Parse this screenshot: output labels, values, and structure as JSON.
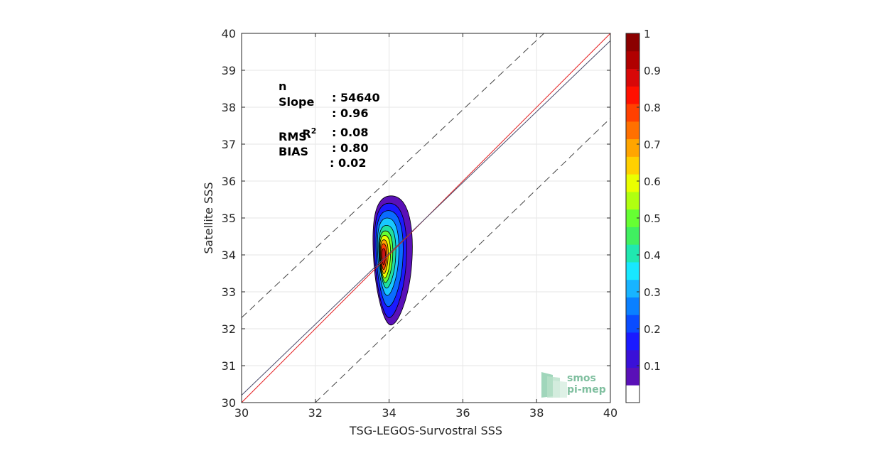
{
  "chart_data": {
    "type": "contour",
    "xlabel": "TSG-LEGOS-Survostral SSS",
    "ylabel": "Satellite SSS",
    "xlim": [
      30,
      40
    ],
    "ylim": [
      30,
      40
    ],
    "xticks": [
      "30",
      "32",
      "34",
      "36",
      "38",
      "40"
    ],
    "yticks": [
      "30",
      "31",
      "32",
      "33",
      "34",
      "35",
      "36",
      "37",
      "38",
      "39",
      "40"
    ],
    "grid": true,
    "lines": [
      {
        "name": "identity",
        "color": "#e41a1c",
        "style": "solid",
        "x": [
          30,
          40
        ],
        "y": [
          30,
          40
        ]
      },
      {
        "name": "fit",
        "color": "#4a4a6a",
        "style": "solid",
        "x": [
          30,
          40
        ],
        "y": [
          30.2,
          39.8
        ]
      },
      {
        "name": "upper-bound",
        "color": "#444444",
        "style": "dashed",
        "x": [
          30,
          38.2
        ],
        "y": [
          32.3,
          40
        ]
      },
      {
        "name": "lower-bound",
        "color": "#444444",
        "style": "dashed",
        "x": [
          32,
          40
        ],
        "y": [
          30,
          37.7
        ]
      }
    ],
    "contour_levels": [
      {
        "level": 0.05,
        "color": "#5a10b8",
        "center": [
          34.05,
          33.85
        ],
        "rx": 0.55,
        "ry": 1.75
      },
      {
        "level": 0.1,
        "color": "#1a1aff",
        "center": [
          34.0,
          33.85
        ],
        "rx": 0.45,
        "ry": 1.55
      },
      {
        "level": 0.2,
        "color": "#0a6cff",
        "center": [
          33.98,
          33.9
        ],
        "rx": 0.38,
        "ry": 1.3
      },
      {
        "level": 0.3,
        "color": "#18c8ff",
        "center": [
          33.95,
          33.95
        ],
        "rx": 0.3,
        "ry": 1.05
      },
      {
        "level": 0.4,
        "color": "#20e0a0",
        "center": [
          33.93,
          33.95
        ],
        "rx": 0.24,
        "ry": 0.85
      },
      {
        "level": 0.5,
        "color": "#66ff33",
        "center": [
          33.9,
          33.95
        ],
        "rx": 0.19,
        "ry": 0.7
      },
      {
        "level": 0.6,
        "color": "#eaff00",
        "center": [
          33.88,
          33.95
        ],
        "rx": 0.15,
        "ry": 0.58
      },
      {
        "level": 0.7,
        "color": "#ffa500",
        "center": [
          33.86,
          33.95
        ],
        "rx": 0.11,
        "ry": 0.46
      },
      {
        "level": 0.8,
        "color": "#ff4000",
        "center": [
          33.85,
          33.95
        ],
        "rx": 0.08,
        "ry": 0.35
      },
      {
        "level": 0.9,
        "color": "#c81414",
        "center": [
          33.85,
          33.95
        ],
        "rx": 0.05,
        "ry": 0.22
      }
    ],
    "colorbar": {
      "ticks": [
        "0.1",
        "0.2",
        "0.3",
        "0.4",
        "0.5",
        "0.6",
        "0.7",
        "0.8",
        "0.9",
        "1"
      ],
      "colors": [
        "#ffffff",
        "#5a10b8",
        "#3a10d8",
        "#1a1aff",
        "#0a4cff",
        "#0a80ff",
        "#18b4ff",
        "#18e8ff",
        "#20e8b0",
        "#40f060",
        "#66ff33",
        "#b0ff10",
        "#eaff00",
        "#ffd000",
        "#ffa500",
        "#ff7000",
        "#ff4000",
        "#ff1000",
        "#d80808",
        "#b00000",
        "#8b0000"
      ]
    },
    "stats": [
      {
        "key": "n",
        "value": ": 54640"
      },
      {
        "key": "Slope",
        "value": ": 0.96"
      },
      {
        "key": "R",
        "sup": "2",
        "value": ": 0.08"
      },
      {
        "key": "RMS",
        "value": ": 0.80"
      },
      {
        "key": "BIAS",
        "value": ": 0.02"
      }
    ]
  },
  "logo": {
    "line1": "smos",
    "line2": "pi-mep"
  }
}
